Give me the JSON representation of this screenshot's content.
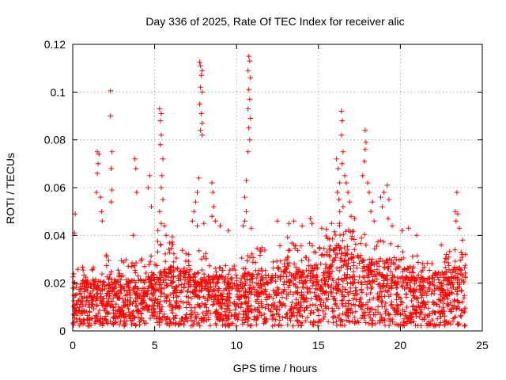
{
  "chart_data": {
    "type": "scatter",
    "title": "Day 336 of 2025, Rate Of TEC Index for receiver alic",
    "xlabel": "GPS time / hours",
    "ylabel": "ROTI / TECUs",
    "xlim": [
      0,
      25
    ],
    "ylim": [
      0,
      0.12
    ],
    "x_ticks": [
      0,
      5,
      10,
      15,
      20,
      25
    ],
    "x_tick_labels": [
      "0",
      "5",
      "10",
      "15",
      "20",
      "25"
    ],
    "y_ticks": [
      0,
      0.02,
      0.04,
      0.06,
      0.08,
      0.1,
      0.12
    ],
    "y_tick_labels": [
      "0",
      "0.02",
      "0.04",
      "0.06",
      "0.08",
      "0.1",
      "0.12"
    ],
    "grid": true,
    "marker": "+",
    "color": "#ff0000",
    "baseline_profile": {
      "hours": [
        0,
        1,
        2,
        3,
        4,
        5,
        6,
        7,
        8,
        9,
        10,
        11,
        12,
        13,
        14,
        15,
        16,
        17,
        18,
        19,
        20,
        21,
        22,
        23,
        24
      ],
      "typical_roti": [
        0.012,
        0.012,
        0.013,
        0.012,
        0.012,
        0.014,
        0.016,
        0.014,
        0.014,
        0.013,
        0.013,
        0.015,
        0.015,
        0.016,
        0.015,
        0.017,
        0.022,
        0.02,
        0.017,
        0.018,
        0.016,
        0.015,
        0.014,
        0.015,
        0.016
      ],
      "upper_envelope": [
        0.028,
        0.03,
        0.032,
        0.03,
        0.03,
        0.038,
        0.04,
        0.032,
        0.035,
        0.03,
        0.03,
        0.035,
        0.036,
        0.04,
        0.036,
        0.038,
        0.048,
        0.042,
        0.04,
        0.038,
        0.035,
        0.032,
        0.03,
        0.034,
        0.036
      ]
    },
    "spikes": [
      {
        "x": 0.15,
        "y": 0.049
      },
      {
        "x": 0.1,
        "y": 0.041
      },
      {
        "x": 1.5,
        "y": 0.075
      },
      {
        "x": 1.6,
        "y": 0.074
      },
      {
        "x": 1.55,
        "y": 0.07
      },
      {
        "x": 1.5,
        "y": 0.066
      },
      {
        "x": 1.45,
        "y": 0.058
      },
      {
        "x": 1.7,
        "y": 0.056
      },
      {
        "x": 1.75,
        "y": 0.05
      },
      {
        "x": 1.8,
        "y": 0.046
      },
      {
        "x": 2.3,
        "y": 0.1005
      },
      {
        "x": 2.3,
        "y": 0.09
      },
      {
        "x": 2.4,
        "y": 0.075
      },
      {
        "x": 2.35,
        "y": 0.068
      },
      {
        "x": 2.4,
        "y": 0.059
      },
      {
        "x": 2.35,
        "y": 0.054
      },
      {
        "x": 3.8,
        "y": 0.072
      },
      {
        "x": 3.85,
        "y": 0.068
      },
      {
        "x": 3.9,
        "y": 0.058
      },
      {
        "x": 3.7,
        "y": 0.04
      },
      {
        "x": 4.7,
        "y": 0.065
      },
      {
        "x": 4.6,
        "y": 0.06
      },
      {
        "x": 4.8,
        "y": 0.052
      },
      {
        "x": 5.3,
        "y": 0.093
      },
      {
        "x": 5.4,
        "y": 0.091
      },
      {
        "x": 5.35,
        "y": 0.088
      },
      {
        "x": 5.4,
        "y": 0.082
      },
      {
        "x": 5.35,
        "y": 0.078
      },
      {
        "x": 5.5,
        "y": 0.072
      },
      {
        "x": 5.45,
        "y": 0.065
      },
      {
        "x": 5.4,
        "y": 0.06
      },
      {
        "x": 5.5,
        "y": 0.055
      },
      {
        "x": 5.3,
        "y": 0.05
      },
      {
        "x": 5.4,
        "y": 0.045
      },
      {
        "x": 5.6,
        "y": 0.044
      },
      {
        "x": 5.2,
        "y": 0.042
      },
      {
        "x": 5.7,
        "y": 0.04
      },
      {
        "x": 7.75,
        "y": 0.1125
      },
      {
        "x": 7.8,
        "y": 0.111
      },
      {
        "x": 7.9,
        "y": 0.109
      },
      {
        "x": 7.85,
        "y": 0.107
      },
      {
        "x": 7.8,
        "y": 0.102
      },
      {
        "x": 7.9,
        "y": 0.1
      },
      {
        "x": 7.75,
        "y": 0.095
      },
      {
        "x": 7.85,
        "y": 0.091
      },
      {
        "x": 7.9,
        "y": 0.087
      },
      {
        "x": 7.8,
        "y": 0.084
      },
      {
        "x": 7.9,
        "y": 0.082
      },
      {
        "x": 7.7,
        "y": 0.064
      },
      {
        "x": 7.6,
        "y": 0.058
      },
      {
        "x": 7.5,
        "y": 0.054
      },
      {
        "x": 7.4,
        "y": 0.05
      },
      {
        "x": 7.3,
        "y": 0.046
      },
      {
        "x": 7.6,
        "y": 0.044
      },
      {
        "x": 8.0,
        "y": 0.045
      },
      {
        "x": 8.5,
        "y": 0.062
      },
      {
        "x": 8.55,
        "y": 0.058
      },
      {
        "x": 8.6,
        "y": 0.052
      },
      {
        "x": 8.5,
        "y": 0.048
      },
      {
        "x": 8.7,
        "y": 0.046
      },
      {
        "x": 9.0,
        "y": 0.044
      },
      {
        "x": 9.5,
        "y": 0.042
      },
      {
        "x": 10.75,
        "y": 0.115
      },
      {
        "x": 10.8,
        "y": 0.113
      },
      {
        "x": 10.7,
        "y": 0.109
      },
      {
        "x": 10.85,
        "y": 0.106
      },
      {
        "x": 10.75,
        "y": 0.101
      },
      {
        "x": 10.8,
        "y": 0.097
      },
      {
        "x": 10.7,
        "y": 0.093
      },
      {
        "x": 10.85,
        "y": 0.089
      },
      {
        "x": 10.75,
        "y": 0.085
      },
      {
        "x": 10.8,
        "y": 0.08
      },
      {
        "x": 10.7,
        "y": 0.075
      },
      {
        "x": 10.6,
        "y": 0.063
      },
      {
        "x": 10.5,
        "y": 0.056
      },
      {
        "x": 10.6,
        "y": 0.05
      },
      {
        "x": 10.5,
        "y": 0.046
      },
      {
        "x": 10.4,
        "y": 0.044
      },
      {
        "x": 10.9,
        "y": 0.043
      },
      {
        "x": 12.5,
        "y": 0.046
      },
      {
        "x": 13.2,
        "y": 0.045
      },
      {
        "x": 13.5,
        "y": 0.046
      },
      {
        "x": 14.0,
        "y": 0.044
      },
      {
        "x": 14.5,
        "y": 0.047
      },
      {
        "x": 14.6,
        "y": 0.045
      },
      {
        "x": 15.2,
        "y": 0.043
      },
      {
        "x": 15.8,
        "y": 0.045
      },
      {
        "x": 16.1,
        "y": 0.072
      },
      {
        "x": 16.2,
        "y": 0.068
      },
      {
        "x": 16.3,
        "y": 0.062
      },
      {
        "x": 16.15,
        "y": 0.058
      },
      {
        "x": 16.25,
        "y": 0.055
      },
      {
        "x": 16.4,
        "y": 0.092
      },
      {
        "x": 16.45,
        "y": 0.088
      },
      {
        "x": 16.4,
        "y": 0.082
      },
      {
        "x": 16.5,
        "y": 0.075
      },
      {
        "x": 16.45,
        "y": 0.07
      },
      {
        "x": 16.6,
        "y": 0.065
      },
      {
        "x": 16.7,
        "y": 0.062
      },
      {
        "x": 16.8,
        "y": 0.058
      },
      {
        "x": 16.9,
        "y": 0.054
      },
      {
        "x": 16.5,
        "y": 0.052
      },
      {
        "x": 16.3,
        "y": 0.05
      },
      {
        "x": 17.0,
        "y": 0.048
      },
      {
        "x": 17.2,
        "y": 0.047
      },
      {
        "x": 17.85,
        "y": 0.084
      },
      {
        "x": 17.9,
        "y": 0.079
      },
      {
        "x": 17.85,
        "y": 0.076
      },
      {
        "x": 17.8,
        "y": 0.071
      },
      {
        "x": 17.7,
        "y": 0.065
      },
      {
        "x": 18.0,
        "y": 0.062
      },
      {
        "x": 18.1,
        "y": 0.058
      },
      {
        "x": 18.3,
        "y": 0.054
      },
      {
        "x": 18.2,
        "y": 0.05
      },
      {
        "x": 18.4,
        "y": 0.046
      },
      {
        "x": 18.8,
        "y": 0.056
      },
      {
        "x": 18.9,
        "y": 0.052
      },
      {
        "x": 19.0,
        "y": 0.058
      },
      {
        "x": 19.2,
        "y": 0.061
      },
      {
        "x": 19.3,
        "y": 0.055
      },
      {
        "x": 19.25,
        "y": 0.047
      },
      {
        "x": 19.5,
        "y": 0.044
      },
      {
        "x": 20.1,
        "y": 0.042
      },
      {
        "x": 20.5,
        "y": 0.043
      },
      {
        "x": 21.0,
        "y": 0.04
      },
      {
        "x": 23.45,
        "y": 0.058
      },
      {
        "x": 23.35,
        "y": 0.05
      },
      {
        "x": 23.5,
        "y": 0.049
      },
      {
        "x": 23.4,
        "y": 0.046
      },
      {
        "x": 23.6,
        "y": 0.043
      },
      {
        "x": 23.8,
        "y": 0.038
      },
      {
        "x": 22.5,
        "y": 0.036
      }
    ]
  }
}
